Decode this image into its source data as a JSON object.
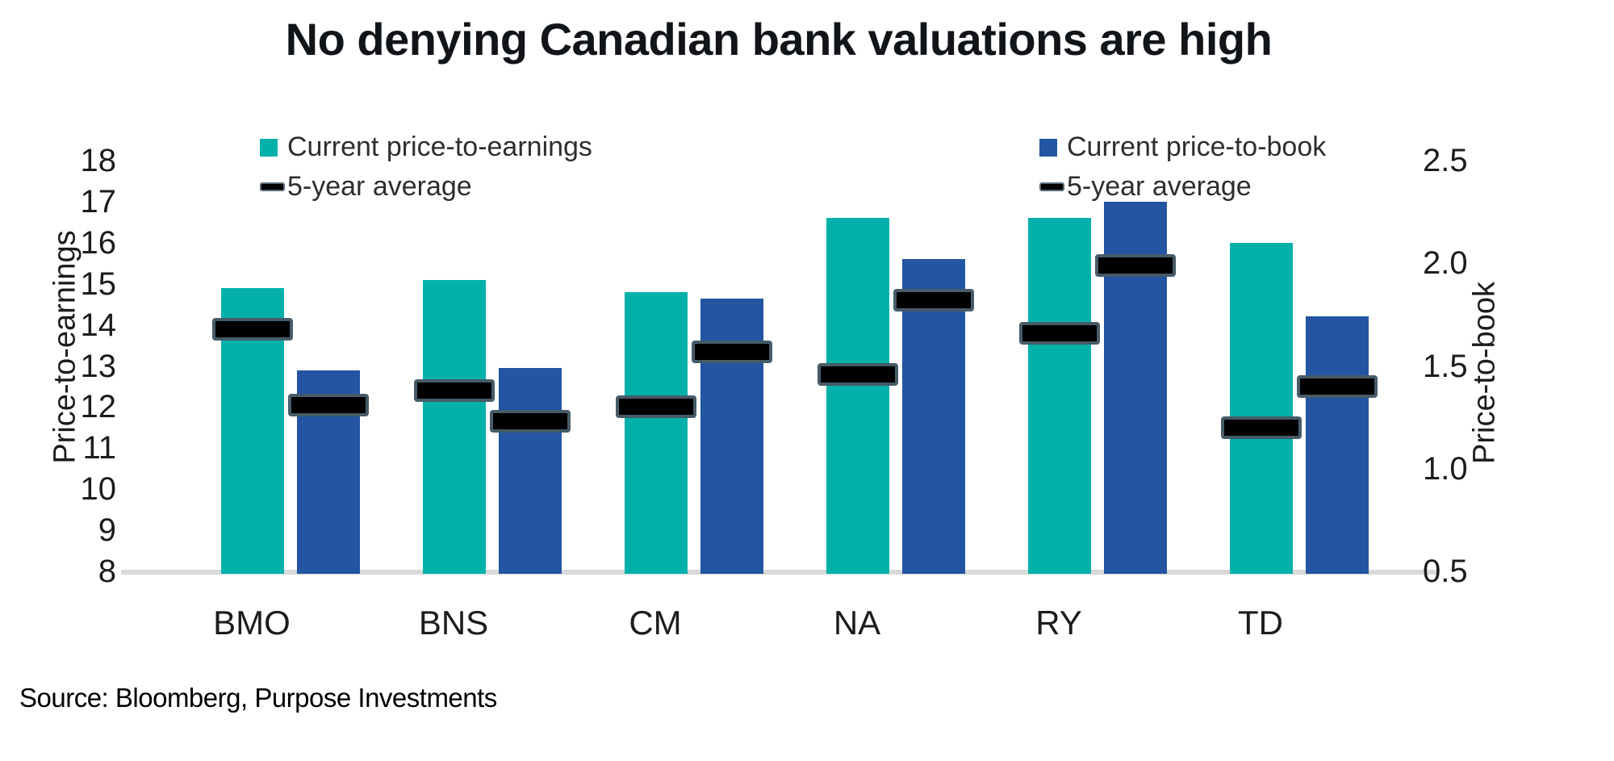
{
  "title": "No denying Canadian bank valuations are high",
  "source": "Source: Bloomberg, Purpose Investments",
  "colors": {
    "pe_bar": "#04b1aa",
    "pb_bar": "#2355a2",
    "avg_dash_fill": "#000000",
    "avg_dash_border": "#475b68",
    "axis_line": "#d9d9d9",
    "text": "#1c1c1c"
  },
  "legends": {
    "pe": {
      "items": [
        {
          "swatch": "square",
          "color": "#04b1aa",
          "label": "Current price-to-earnings"
        },
        {
          "swatch": "dash",
          "label": "5-year average"
        }
      ]
    },
    "pb": {
      "items": [
        {
          "swatch": "square",
          "color": "#2355a2",
          "label": "Current price-to-book"
        },
        {
          "swatch": "dash",
          "label": "5-year average"
        }
      ]
    }
  },
  "left_axis": {
    "title": "Price-to-earnings",
    "ticks": [
      "8",
      "9",
      "10",
      "11",
      "12",
      "13",
      "14",
      "15",
      "16",
      "17",
      "18"
    ]
  },
  "right_axis": {
    "title": "Price-to-book",
    "ticks": [
      "0.5",
      "1.0",
      "1.5",
      "2.0",
      "2.5"
    ]
  },
  "chart_data": {
    "type": "bar",
    "title": "No denying Canadian bank valuations are high",
    "categories": [
      "BMO",
      "BNS",
      "CM",
      "NA",
      "RY",
      "TD"
    ],
    "series": [
      {
        "name": "Current price-to-earnings",
        "axis": "left",
        "style": "bar",
        "color": "#04b1aa",
        "values": [
          14.9,
          15.1,
          14.8,
          16.6,
          16.6,
          16.0
        ]
      },
      {
        "name": "Current price-to-book",
        "axis": "right",
        "style": "bar",
        "color": "#2355a2",
        "values": [
          1.48,
          1.49,
          1.83,
          2.02,
          2.3,
          1.74
        ]
      },
      {
        "name": "5-year average price-to-earnings",
        "axis": "left",
        "style": "dash",
        "color": "#000000",
        "values": [
          13.9,
          12.4,
          12.0,
          12.8,
          13.8,
          11.5
        ]
      },
      {
        "name": "5-year average price-to-book",
        "axis": "right",
        "style": "dash",
        "color": "#000000",
        "values": [
          1.31,
          1.23,
          1.57,
          1.82,
          1.99,
          1.4
        ]
      }
    ],
    "left_axis": {
      "label": "Price-to-earnings",
      "range": [
        8,
        18
      ],
      "tick_step": 1
    },
    "right_axis": {
      "label": "Price-to-book",
      "range": [
        0.5,
        2.5
      ],
      "tick_step": 0.5
    },
    "grid": false,
    "legend_position": "top"
  }
}
